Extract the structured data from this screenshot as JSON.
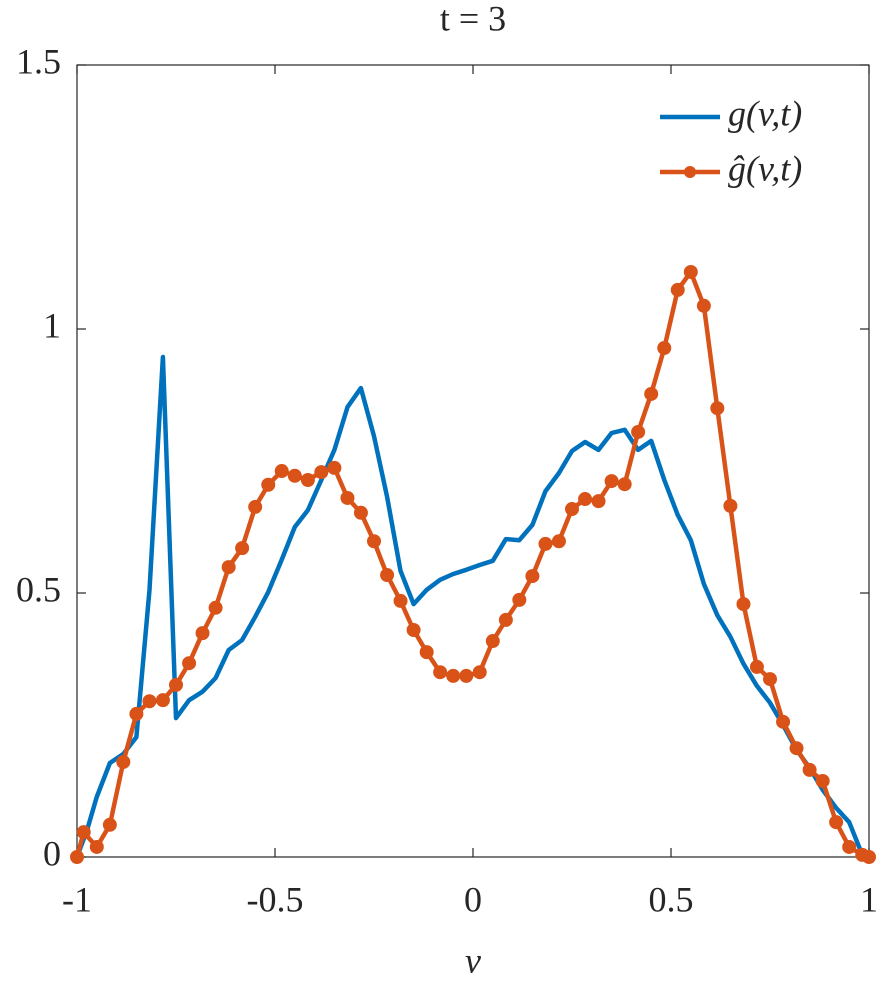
{
  "chart_data": {
    "type": "line",
    "title": "t = 3",
    "x_label": "v",
    "xlim": [
      -1,
      1
    ],
    "ylim": [
      0,
      1.5
    ],
    "xticks": [
      -1,
      -0.5,
      0,
      0.5,
      1
    ],
    "yticks": [
      0,
      0.5,
      1,
      1.5
    ],
    "grid": false,
    "legend": "top-right",
    "series": [
      {
        "name": "g(v,t)",
        "color": "#0072bd",
        "x": [
          -1,
          -0.975,
          -0.95,
          -0.917,
          -0.883,
          -0.85,
          -0.817,
          -0.783,
          -0.75,
          -0.717,
          -0.683,
          -0.65,
          -0.617,
          -0.583,
          -0.55,
          -0.517,
          -0.483,
          -0.45,
          -0.417,
          -0.383,
          -0.35,
          -0.317,
          -0.283,
          -0.25,
          -0.217,
          -0.183,
          -0.15,
          -0.117,
          -0.083,
          -0.05,
          -0.017,
          0.017,
          0.05,
          0.083,
          0.117,
          0.15,
          0.183,
          0.217,
          0.25,
          0.283,
          0.317,
          0.35,
          0.383,
          0.417,
          0.45,
          0.483,
          0.517,
          0.55,
          0.583,
          0.617,
          0.65,
          0.683,
          0.717,
          0.75,
          0.783,
          0.817,
          0.85,
          0.883,
          0.917,
          0.95,
          0.983,
          1
        ],
        "values": [
          0,
          0.05,
          0.114,
          0.178,
          0.195,
          0.227,
          0.506,
          0.947,
          0.263,
          0.297,
          0.313,
          0.339,
          0.392,
          0.411,
          0.455,
          0.502,
          0.563,
          0.625,
          0.657,
          0.714,
          0.771,
          0.852,
          0.888,
          0.797,
          0.682,
          0.542,
          0.479,
          0.506,
          0.525,
          0.536,
          0.544,
          0.553,
          0.561,
          0.602,
          0.6,
          0.629,
          0.693,
          0.727,
          0.769,
          0.786,
          0.771,
          0.803,
          0.809,
          0.771,
          0.788,
          0.714,
          0.648,
          0.6,
          0.517,
          0.458,
          0.417,
          0.366,
          0.324,
          0.292,
          0.25,
          0.203,
          0.169,
          0.127,
          0.093,
          0.066,
          0.004,
          0
        ]
      },
      {
        "name": "ĝ(v,t)",
        "color": "#d95319",
        "marker": "o",
        "x": [
          -1,
          -0.983,
          -0.95,
          -0.917,
          -0.883,
          -0.85,
          -0.817,
          -0.783,
          -0.75,
          -0.717,
          -0.683,
          -0.65,
          -0.617,
          -0.583,
          -0.55,
          -0.517,
          -0.483,
          -0.45,
          -0.417,
          -0.383,
          -0.35,
          -0.317,
          -0.283,
          -0.25,
          -0.217,
          -0.183,
          -0.15,
          -0.117,
          -0.083,
          -0.05,
          -0.017,
          0.017,
          0.05,
          0.083,
          0.117,
          0.15,
          0.183,
          0.217,
          0.25,
          0.283,
          0.317,
          0.35,
          0.383,
          0.417,
          0.45,
          0.483,
          0.517,
          0.55,
          0.583,
          0.617,
          0.65,
          0.683,
          0.717,
          0.75,
          0.783,
          0.817,
          0.85,
          0.883,
          0.917,
          0.95,
          0.983,
          1
        ],
        "values": [
          0,
          0.047,
          0.019,
          0.061,
          0.18,
          0.271,
          0.295,
          0.297,
          0.326,
          0.367,
          0.424,
          0.472,
          0.549,
          0.585,
          0.663,
          0.705,
          0.731,
          0.722,
          0.714,
          0.729,
          0.737,
          0.68,
          0.652,
          0.598,
          0.534,
          0.485,
          0.43,
          0.388,
          0.35,
          0.343,
          0.343,
          0.35,
          0.409,
          0.449,
          0.487,
          0.532,
          0.593,
          0.598,
          0.659,
          0.678,
          0.674,
          0.712,
          0.706,
          0.805,
          0.877,
          0.964,
          1.074,
          1.108,
          1.044,
          0.85,
          0.665,
          0.479,
          0.36,
          0.337,
          0.256,
          0.206,
          0.165,
          0.144,
          0.066,
          0.019,
          0.004,
          0
        ]
      }
    ]
  }
}
